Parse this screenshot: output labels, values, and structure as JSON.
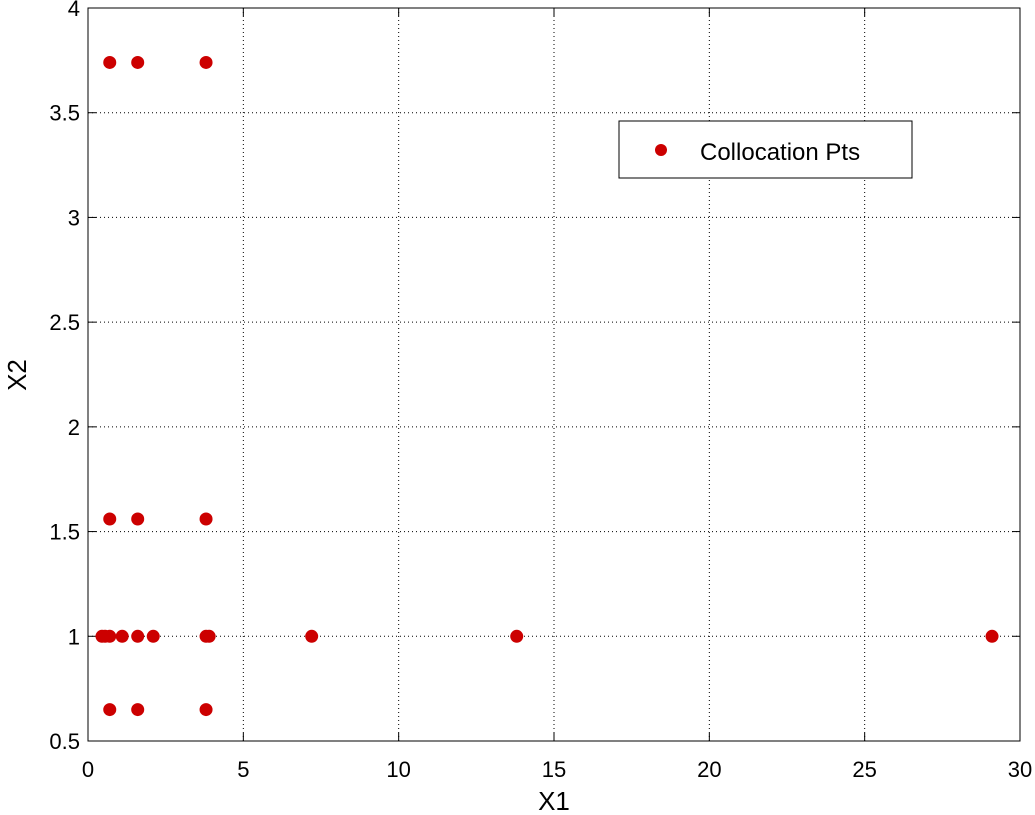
{
  "chart_data": {
    "type": "scatter",
    "xlabel": "X1",
    "ylabel": "X2",
    "xlim": [
      0,
      30
    ],
    "ylim": [
      0.5,
      4
    ],
    "xticks": [
      0,
      5,
      10,
      15,
      20,
      25,
      30
    ],
    "yticks": [
      0.5,
      1,
      1.5,
      2,
      2.5,
      3,
      3.5,
      4
    ],
    "xtick_labels": [
      "0",
      "5",
      "10",
      "15",
      "20",
      "25",
      "30"
    ],
    "ytick_labels": [
      "0.5",
      "1",
      "1.5",
      "2",
      "2.5",
      "3",
      "3.5",
      "4"
    ],
    "grid": true,
    "legend_position": "top-right",
    "series": [
      {
        "name": "Collocation Pts",
        "color": "#cc0000",
        "marker": "circle",
        "points": [
          {
            "x": 0.7,
            "y": 3.74
          },
          {
            "x": 1.6,
            "y": 3.74
          },
          {
            "x": 3.8,
            "y": 3.74
          },
          {
            "x": 0.7,
            "y": 1.56
          },
          {
            "x": 1.6,
            "y": 1.56
          },
          {
            "x": 3.8,
            "y": 1.56
          },
          {
            "x": 0.45,
            "y": 1.0
          },
          {
            "x": 0.55,
            "y": 1.0
          },
          {
            "x": 0.7,
            "y": 1.0
          },
          {
            "x": 1.1,
            "y": 1.0
          },
          {
            "x": 1.6,
            "y": 1.0
          },
          {
            "x": 2.1,
            "y": 1.0
          },
          {
            "x": 3.8,
            "y": 1.0
          },
          {
            "x": 3.9,
            "y": 1.0
          },
          {
            "x": 7.2,
            "y": 1.0
          },
          {
            "x": 13.8,
            "y": 1.0
          },
          {
            "x": 29.1,
            "y": 1.0
          },
          {
            "x": 0.7,
            "y": 0.65
          },
          {
            "x": 1.6,
            "y": 0.65
          },
          {
            "x": 3.8,
            "y": 0.65
          }
        ]
      }
    ]
  }
}
